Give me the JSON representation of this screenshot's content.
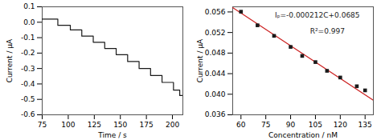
{
  "chart_data": [
    {
      "type": "step",
      "xlabel": "Time / s",
      "ylabel": "Current / μA",
      "x": [
        75,
        86,
        90,
        97,
        102,
        108,
        113,
        119,
        124,
        130,
        135,
        141,
        146,
        152,
        157,
        163,
        168,
        174,
        179,
        185,
        190,
        196,
        201,
        207,
        210
      ],
      "values": [
        0.02,
        0.02,
        -0.02,
        -0.02,
        -0.05,
        -0.05,
        -0.09,
        -0.09,
        -0.13,
        -0.13,
        -0.17,
        -0.17,
        -0.21,
        -0.21,
        -0.255,
        -0.255,
        -0.3,
        -0.3,
        -0.345,
        -0.345,
        -0.39,
        -0.39,
        -0.44,
        -0.475,
        -0.475
      ],
      "color": "#1a1a1a",
      "xlim": [
        75,
        210
      ],
      "ylim": [
        -0.6,
        0.1
      ],
      "xticks": [
        75,
        100,
        125,
        150,
        175,
        200
      ],
      "yticks": [
        -0.6,
        -0.5,
        -0.4,
        -0.3,
        -0.2,
        -0.1,
        {
          "value": 0,
          "label": "0.0"
        },
        0.1
      ]
    },
    {
      "type": "scatter",
      "xlabel": "Concentration / nM",
      "ylabel": "Current / μA",
      "series": [
        {
          "type": "line",
          "color": "#cc2222",
          "x": [
            55,
            140
          ],
          "values": [
            0.05684,
            0.03882
          ]
        },
        {
          "type": "scatter",
          "marker": "square",
          "color": "#1a1a1a",
          "x": [
            60,
            70,
            80,
            90,
            97,
            105,
            112,
            120,
            130,
            135
          ],
          "values": [
            0.05605,
            0.0534,
            0.05135,
            0.0492,
            0.04745,
            0.04625,
            0.04455,
            0.04325,
            0.04155,
            0.04075
          ]
        }
      ],
      "xlim": [
        55,
        140
      ],
      "ylim": [
        0.036,
        0.057
      ],
      "xticks": [
        60,
        75,
        90,
        105,
        120,
        135
      ],
      "yticks": [
        {
          "value": 0.036,
          "label": "0.036"
        },
        {
          "value": 0.04,
          "label": "0.040"
        },
        {
          "value": 0.044,
          "label": "0.044"
        },
        {
          "value": 0.048,
          "label": "0.048"
        },
        {
          "value": 0.052,
          "label": "0.052"
        },
        {
          "value": 0.056,
          "label": "0.056"
        }
      ],
      "annotations": [
        "Iₚ=-0.000212C+0.0685",
        "R²=0.997"
      ]
    }
  ]
}
